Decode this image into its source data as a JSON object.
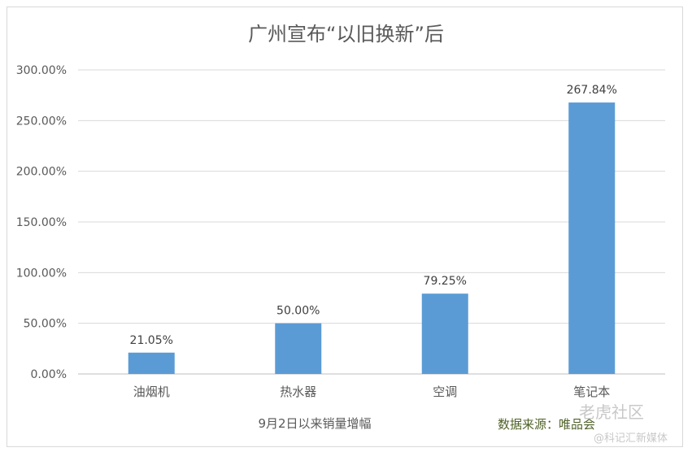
{
  "chart_data": {
    "type": "bar",
    "title": "广州宣布“以旧换新”后",
    "xlabel": "9月2日以来销量增幅",
    "ylabel": "",
    "categories": [
      "油烟机",
      "热水器",
      "空调",
      "笔记本"
    ],
    "values": [
      21.05,
      50.0,
      79.25,
      267.84
    ],
    "data_labels": [
      "21.05%",
      "50.00%",
      "79.25%",
      "267.84%"
    ],
    "ylim": [
      0,
      300
    ],
    "yticks": [
      0,
      50,
      100,
      150,
      200,
      250,
      300
    ],
    "ytick_labels": [
      "0.00%",
      "50.00%",
      "100.00%",
      "150.00%",
      "200.00%",
      "250.00%",
      "300.00%"
    ],
    "grid": true,
    "legend": "none",
    "bar_color": "#5b9bd5"
  },
  "source_text": "数据来源：唯品会",
  "watermark": {
    "line1": "老虎社区",
    "line2": "@科记汇新媒体"
  }
}
